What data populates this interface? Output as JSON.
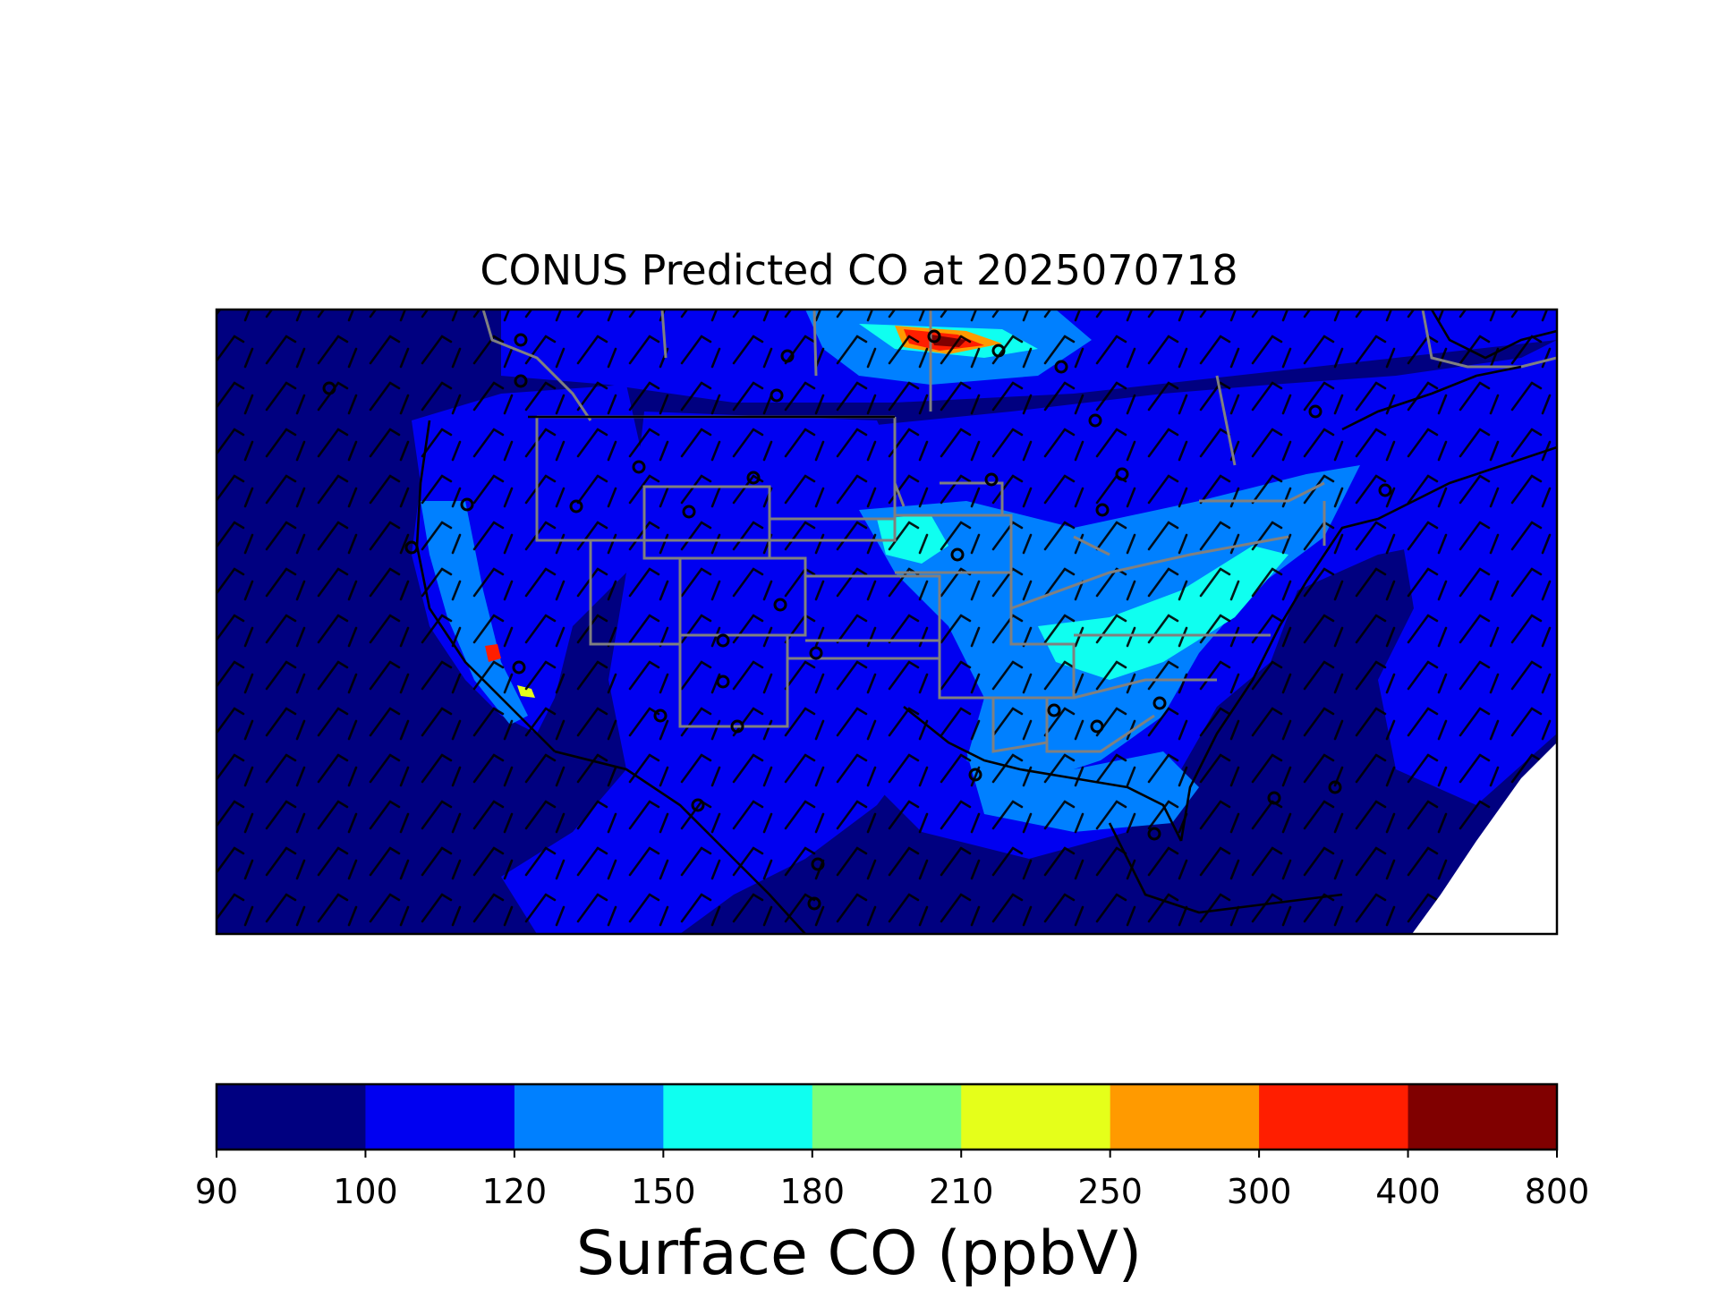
{
  "map": {
    "title": "CONUS Predicted CO at 2025070718"
  },
  "colorbar": {
    "label": "Surface CO (ppbV)",
    "ticks": [
      "90",
      "100",
      "120",
      "150",
      "180",
      "210",
      "250",
      "300",
      "400",
      "800"
    ],
    "bins": [
      {
        "range": [
          90,
          100
        ],
        "color": "#000080"
      },
      {
        "range": [
          100,
          120
        ],
        "color": "#0000f1"
      },
      {
        "range": [
          120,
          150
        ],
        "color": "#0080ff"
      },
      {
        "range": [
          150,
          180
        ],
        "color": "#0ffff0"
      },
      {
        "range": [
          180,
          210
        ],
        "color": "#7cff79"
      },
      {
        "range": [
          210,
          250
        ],
        "color": "#e5ff1a"
      },
      {
        "range": [
          250,
          300
        ],
        "color": "#ff9a00"
      },
      {
        "range": [
          300,
          400
        ],
        "color": "#ff1e00"
      },
      {
        "range": [
          400,
          800
        ],
        "color": "#800000"
      }
    ]
  },
  "colors": {
    "state_borders": "#808080",
    "coastlines": "#000000",
    "wind_barbs": "#000000",
    "no_data": "#ffffff"
  }
}
